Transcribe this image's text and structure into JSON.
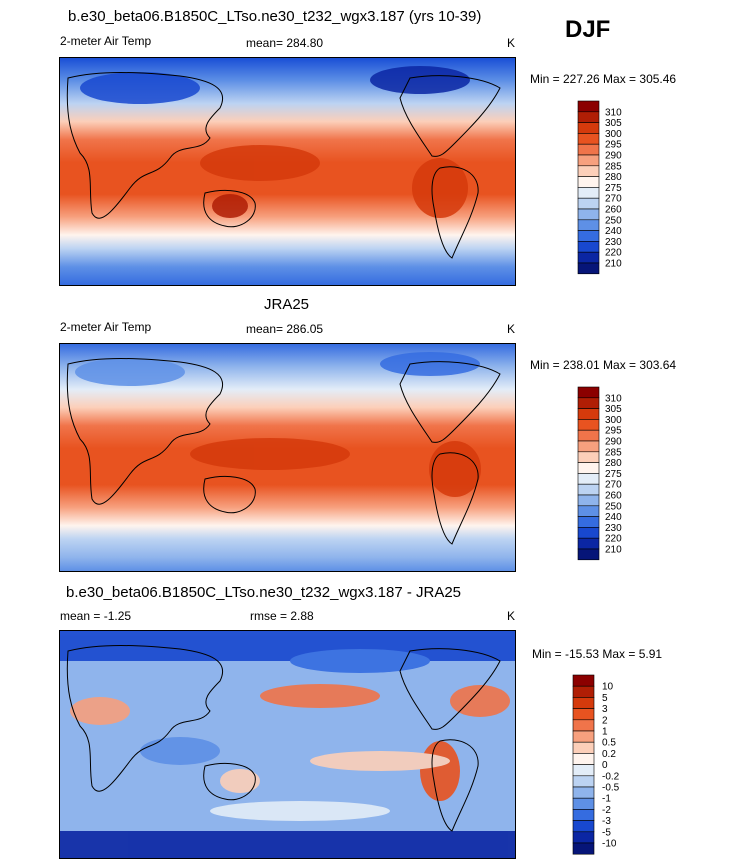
{
  "page": {
    "season": "DJF"
  },
  "panels": [
    {
      "title": "b.e30_beta06.B1850C_LTso.ne30_t232_wgx3.187 (yrs 10-39)",
      "variable": "2-meter Air Temp",
      "stat_label": "mean=",
      "stat_value": "284.80",
      "units": "K",
      "minmax": "Min = 227.26 Max = 305.46"
    },
    {
      "title": "JRA25",
      "variable": "2-meter Air Temp",
      "stat_label": "mean=",
      "stat_value": "286.05",
      "units": "K",
      "minmax": "Min = 238.01 Max = 303.64"
    },
    {
      "title": "b.e30_beta06.B1850C_LTso.ne30_t232_wgx3.187 - JRA25",
      "mean_text": "mean =  -1.25",
      "rmse_text": "rmse =   2.88",
      "units": "K",
      "minmax": "Min = -15.53 Max =   5.91"
    }
  ],
  "chart_data": [
    {
      "type": "heatmap",
      "title": "b.e30_beta06.B1850C_LTso.ne30_t232_wgx3.187 (yrs 10-39)",
      "variable": "2-meter Air Temp",
      "units": "K",
      "mean": 284.8,
      "min": 227.26,
      "max": 305.46,
      "colorbar": {
        "levels": [
          310,
          305,
          300,
          295,
          290,
          285,
          280,
          275,
          270,
          260,
          250,
          240,
          230,
          220,
          210
        ],
        "colors": [
          "#8b0000",
          "#b01e05",
          "#d53a0c",
          "#e85320",
          "#f0744a",
          "#f7a07e",
          "#fccfb9",
          "#fff4ee",
          "#e3edf8",
          "#bcd3f2",
          "#8fb4ec",
          "#5e90e6",
          "#356ce0",
          "#1848cf",
          "#0b26a3",
          "#061578"
        ]
      }
    },
    {
      "type": "heatmap",
      "title": "JRA25",
      "variable": "2-meter Air Temp",
      "units": "K",
      "mean": 286.05,
      "min": 238.01,
      "max": 303.64,
      "colorbar": {
        "levels": [
          310,
          305,
          300,
          295,
          290,
          285,
          280,
          275,
          270,
          260,
          250,
          240,
          230,
          220,
          210
        ],
        "colors": [
          "#8b0000",
          "#b01e05",
          "#d53a0c",
          "#e85320",
          "#f0744a",
          "#f7a07e",
          "#fccfb9",
          "#fff4ee",
          "#e3edf8",
          "#bcd3f2",
          "#8fb4ec",
          "#5e90e6",
          "#356ce0",
          "#1848cf",
          "#0b26a3",
          "#061578"
        ]
      }
    },
    {
      "type": "heatmap",
      "title": "b.e30_beta06.B1850C_LTso.ne30_t232_wgx3.187 - JRA25",
      "units": "K",
      "mean": -1.25,
      "rmse": 2.88,
      "min": -15.53,
      "max": 5.91,
      "colorbar": {
        "levels": [
          "10",
          "5",
          "3",
          "2",
          "1",
          "0.5",
          "0.2",
          "0",
          "-0.2",
          "-0.5",
          "-1",
          "-2",
          "-3",
          "-5",
          "-10"
        ],
        "colors": [
          "#8b0000",
          "#b01e05",
          "#d53a0c",
          "#e85320",
          "#f0744a",
          "#f7a07e",
          "#fccfb9",
          "#fff4ee",
          "#e3edf8",
          "#bcd3f2",
          "#8fb4ec",
          "#5e90e6",
          "#356ce0",
          "#1848cf",
          "#0b26a3",
          "#061578"
        ]
      }
    }
  ]
}
